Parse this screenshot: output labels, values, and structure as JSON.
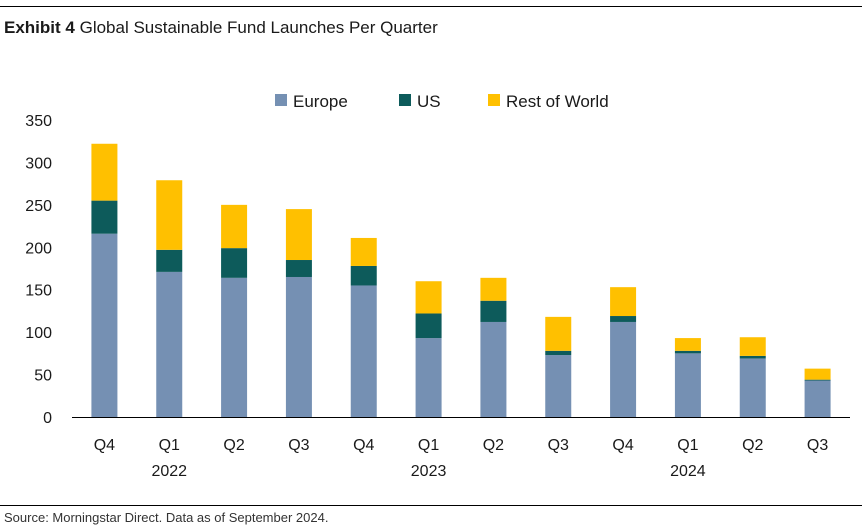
{
  "header": {
    "exhibit": "Exhibit 4",
    "title": "Global Sustainable Fund Launches Per Quarter"
  },
  "footer": {
    "source": "Source: Morningstar Direct. Data as of September 2024."
  },
  "chart_data": {
    "type": "bar",
    "stacked": true,
    "title": "Global Sustainable Fund Launches Per Quarter",
    "xlabel": "",
    "ylabel": "",
    "ylim": [
      0,
      350
    ],
    "yticks": [
      0,
      50,
      100,
      150,
      200,
      250,
      300,
      350
    ],
    "grid": false,
    "legend": "top-center",
    "categories": [
      "Q4",
      "Q1",
      "Q2",
      "Q3",
      "Q4",
      "Q1",
      "Q2",
      "Q3",
      "Q4",
      "Q1",
      "Q2",
      "Q3"
    ],
    "year_labels": [
      {
        "index": 1,
        "label": "2022"
      },
      {
        "index": 5,
        "label": "2023"
      },
      {
        "index": 9,
        "label": "2024"
      }
    ],
    "series": [
      {
        "name": "Europe",
        "color": "#7590b3",
        "values": [
          216,
          171,
          164,
          165,
          155,
          93,
          112,
          73,
          112,
          75,
          69,
          43
        ]
      },
      {
        "name": "US",
        "color": "#0d5b5b",
        "values": [
          39,
          26,
          35,
          20,
          23,
          29,
          25,
          5,
          7,
          3,
          3,
          1
        ]
      },
      {
        "name": "Rest of World",
        "color": "#ffc000",
        "values": [
          67,
          82,
          51,
          60,
          33,
          38,
          27,
          40,
          34,
          15,
          22,
          13
        ]
      }
    ]
  }
}
